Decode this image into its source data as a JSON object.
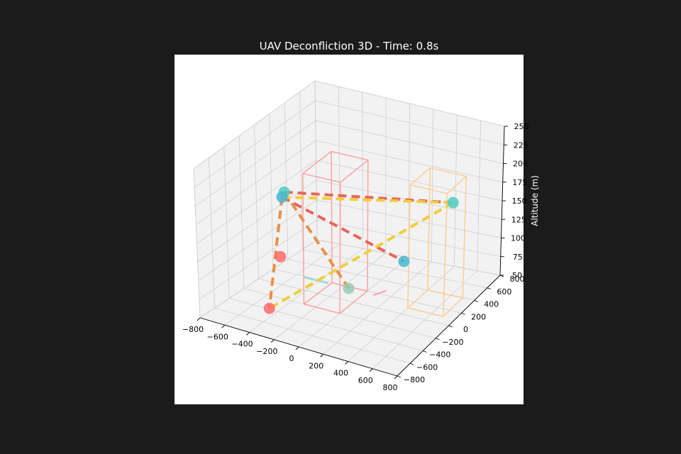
{
  "chart_data": {
    "type": "scatter3d",
    "title": "UAV Deconfliction 3D - Time: 0.8s",
    "xlabel": "",
    "ylabel": "",
    "zlabel": "Altitude (m)",
    "xlim": [
      -800,
      800
    ],
    "ylim": [
      -800,
      800
    ],
    "zlim": [
      50,
      250
    ],
    "x_ticks": [
      "−800",
      "−600",
      "−400",
      "−200",
      "0",
      "200",
      "400",
      "600",
      "800"
    ],
    "y_ticks": [
      "−800",
      "−600",
      "−400",
      "−200",
      "0",
      "200",
      "400",
      "600",
      "800"
    ],
    "z_ticks": [
      "50",
      "75",
      "100",
      "125",
      "150",
      "175",
      "200",
      "225",
      "250"
    ],
    "grid": true,
    "colors": {
      "background": "#1b1b1b",
      "axes_face": "#ffffff",
      "red": "#e8655a",
      "orange": "#e8904a",
      "yellow": "#f0ce3c",
      "teal": "#4ecdc4",
      "blue": "#45b7d1",
      "coral": "#ff6b6b",
      "mint": "#96ceb4",
      "no_fly_red": "#ff9a9a",
      "no_fly_orange": "#ffc98a"
    },
    "no_fly_zones": [
      {
        "x": [
          -300,
          0
        ],
        "y": [
          -200,
          200
        ],
        "z": [
          50,
          220
        ],
        "color": "#ff9a9a"
      },
      {
        "x": [
          400,
          700
        ],
        "y": [
          100,
          400
        ],
        "z": [
          50,
          210
        ],
        "color": "#ffc98a"
      }
    ],
    "trajectories": [
      {
        "points": [
          [
            -450,
            -200,
            190
          ],
          [
            750,
            100,
            200
          ]
        ],
        "color": "#e8655a"
      },
      {
        "points": [
          [
            -650,
            100,
            155
          ],
          [
            250,
            300,
            90
          ]
        ],
        "color": "#e8655a"
      },
      {
        "points": [
          [
            -450,
            -200,
            190
          ],
          [
            100,
            -250,
            90
          ]
        ],
        "color": "#e8904a"
      },
      {
        "points": [
          [
            -650,
            100,
            155
          ],
          [
            -350,
            -600,
            70
          ]
        ],
        "color": "#e8904a"
      },
      {
        "points": [
          [
            -650,
            100,
            155
          ],
          [
            750,
            100,
            200
          ]
        ],
        "color": "#f0ce3c"
      },
      {
        "points": [
          [
            750,
            100,
            200
          ],
          [
            -350,
            -600,
            70
          ]
        ],
        "color": "#f0ce3c"
      }
    ],
    "drones": [
      {
        "x": -450,
        "y": -200,
        "z": 190,
        "color": "#4ecdc4"
      },
      {
        "x": 750,
        "y": 100,
        "z": 200,
        "color": "#4ecdc4"
      },
      {
        "x": -650,
        "y": 100,
        "z": 155,
        "color": "#45b7d1"
      },
      {
        "x": 250,
        "y": 300,
        "z": 90,
        "color": "#45b7d1"
      },
      {
        "x": -550,
        "y": -100,
        "z": 95,
        "color": "#ff6b6b"
      },
      {
        "x": -350,
        "y": -600,
        "z": 70,
        "color": "#ff6b6b"
      },
      {
        "x": 100,
        "y": -250,
        "z": 90,
        "color": "#96ceb4"
      }
    ],
    "short_segments": [
      {
        "points": [
          [
            -300,
            -200,
            85
          ],
          [
            -100,
            -200,
            85
          ]
        ],
        "color": "#8fd8da"
      },
      {
        "points": [
          [
            250,
            -150,
            80
          ],
          [
            300,
            -50,
            80
          ]
        ],
        "color": "#ff9fb0"
      }
    ]
  }
}
